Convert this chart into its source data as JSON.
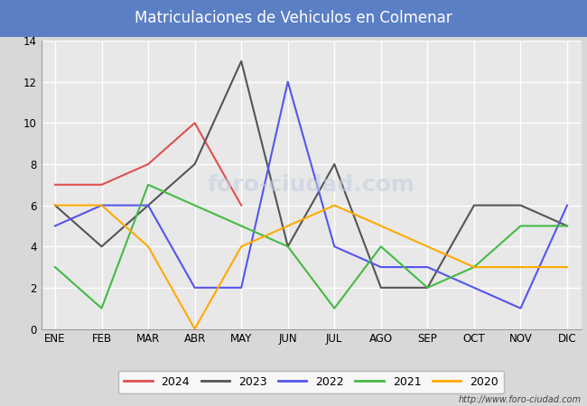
{
  "title": "Matriculaciones de Vehiculos en Colmenar",
  "title_bg_color": "#5b7fc4",
  "title_text_color": "#ffffff",
  "months": [
    "ENE",
    "FEB",
    "MAR",
    "ABR",
    "MAY",
    "JUN",
    "JUL",
    "AGO",
    "SEP",
    "OCT",
    "NOV",
    "DIC"
  ],
  "series": {
    "2024": {
      "color": "#e05050",
      "data": [
        7,
        7,
        8,
        10,
        6,
        null,
        null,
        null,
        null,
        null,
        null,
        null
      ]
    },
    "2023": {
      "color": "#555555",
      "data": [
        6,
        4,
        6,
        8,
        13,
        4,
        8,
        2,
        2,
        6,
        6,
        5
      ]
    },
    "2022": {
      "color": "#5555ee",
      "data": [
        5,
        6,
        6,
        2,
        2,
        12,
        4,
        3,
        3,
        2,
        1,
        6
      ]
    },
    "2021": {
      "color": "#44bb44",
      "data": [
        3,
        1,
        7,
        6,
        5,
        4,
        1,
        4,
        2,
        3,
        5,
        5
      ]
    },
    "2020": {
      "color": "#ffaa00",
      "data": [
        6,
        6,
        4,
        0,
        4,
        5,
        6,
        5,
        4,
        3,
        3,
        3
      ]
    }
  },
  "ylim": [
    0,
    14
  ],
  "yticks": [
    0,
    2,
    4,
    6,
    8,
    10,
    12,
    14
  ],
  "url_text": "http://www.foro-ciudad.com",
  "outer_bg_color": "#d8d8d8",
  "plot_bg_color": "#e8e8e8",
  "grid_color": "#ffffff",
  "watermark_color": "#c5cfe0",
  "watermark_text": "foro-ciudad.com",
  "watermark_fontsize": 18,
  "title_fontsize": 12,
  "tick_fontsize": 8.5,
  "legend_fontsize": 9,
  "linewidth": 1.5
}
